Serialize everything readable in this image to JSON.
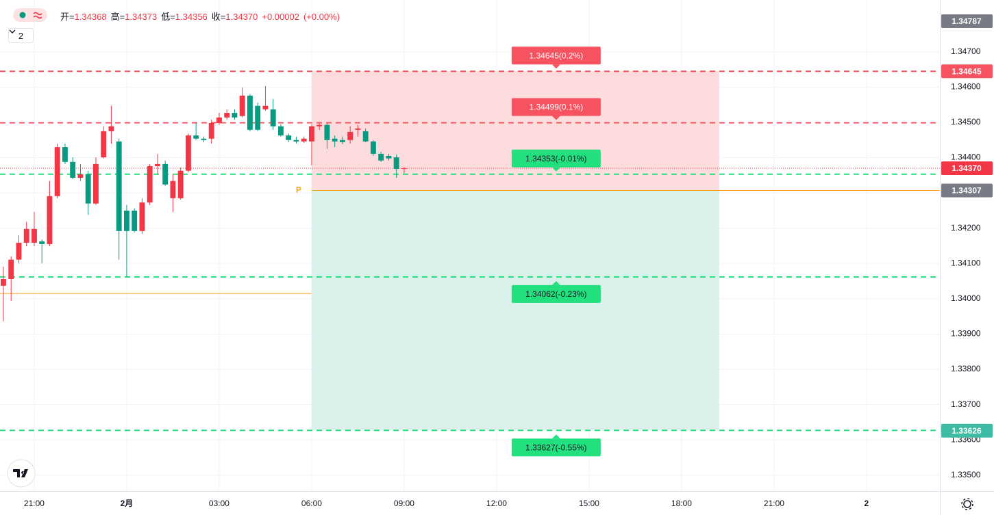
{
  "chart_data": {
    "type": "candlestick",
    "indicator_count": 2,
    "header": [
      {
        "name": "开=",
        "value": 1.34368
      },
      {
        "name": "高=",
        "value": 1.34373
      },
      {
        "name": "低=",
        "value": 1.34356
      },
      {
        "name": "收=",
        "value": {
          "value": 1.3437,
          "label": "1.34370"
        }
      }
    ],
    "change": "+0.00002",
    "change_pct": "(+0.00%)",
    "up_color": "#f23645",
    "down_color": "#089981",
    "grid": true,
    "xlim": [
      19.89,
      50.38
    ],
    "xticks": [
      {
        "value": 21,
        "label": "21:00"
      },
      {
        "value": 24,
        "label": "2月"
      },
      {
        "value": 27,
        "label": "03:00"
      },
      {
        "value": 30,
        "label": "06:00"
      },
      {
        "value": 33,
        "label": "09:00"
      },
      {
        "value": 36,
        "label": "12:00"
      },
      {
        "value": 39,
        "label": "15:00"
      },
      {
        "value": 42,
        "label": "18:00"
      },
      {
        "value": 45,
        "label": "21:00"
      },
      {
        "value": 48,
        "label": "2"
      }
    ],
    "ylim": [
      1.33455,
      1.34847
    ],
    "yticks": [
      {
        "value": 1.335,
        "label": "1.33500"
      },
      {
        "value": 1.336,
        "label": "1.33600"
      },
      {
        "value": 1.337,
        "label": "1.33700"
      },
      {
        "value": 1.338,
        "label": "1.33800"
      },
      {
        "value": 1.339,
        "label": "1.33900"
      },
      {
        "value": 1.34,
        "label": "1.34000"
      },
      {
        "value": 1.341,
        "label": "1.34100"
      },
      {
        "value": 1.342,
        "label": "1.34200"
      },
      {
        "value": 1.343,
        "label": "1.34300"
      },
      {
        "value": 1.344,
        "label": "1.34400"
      },
      {
        "value": 1.345,
        "label": "1.34500"
      },
      {
        "value": 1.346,
        "label": "1.34600"
      },
      {
        "value": 1.347,
        "label": "1.34700"
      }
    ],
    "x": [
      20,
      20.25,
      20.5,
      20.75,
      21,
      21.25,
      21.5,
      21.75,
      22,
      22.25,
      22.5,
      22.75,
      23,
      23.25,
      23.5,
      23.75,
      24,
      24.25,
      24.5,
      24.75,
      25,
      25.25,
      25.5,
      25.75,
      26,
      26.25,
      26.5,
      26.75,
      27,
      27.25,
      27.5,
      27.75,
      28,
      28.25,
      28.5,
      28.75,
      29,
      29.25,
      29.5,
      29.75,
      30,
      30.25,
      30.5,
      30.75,
      31,
      31.25,
      31.5,
      31.75,
      32,
      32.25,
      32.5,
      32.75,
      33
    ],
    "open": [
      1.34037,
      1.34056,
      1.34111,
      1.34159,
      1.34159,
      1.34163,
      1.34155,
      1.34291,
      1.3443,
      1.34388,
      1.34343,
      1.34353,
      1.3427,
      1.34401,
      1.34475,
      1.34446,
      1.3425,
      1.3425,
      1.34192,
      1.34273,
      1.34376,
      1.34382,
      1.34285,
      1.34285,
      1.34363,
      1.34463,
      1.34454,
      1.34454,
      1.34498,
      1.34514,
      1.34527,
      1.34518,
      1.34576,
      1.34547,
      1.34537,
      1.34537,
      1.34489,
      1.34463,
      1.3445,
      1.34446,
      1.34446,
      1.34489,
      1.34493,
      1.34454,
      1.3445,
      1.3445,
      1.34479,
      1.34475,
      1.34446,
      1.34411,
      1.34405,
      1.34401,
      1.34368
    ],
    "high": [
      1.34091,
      1.3412,
      1.3418,
      1.34218,
      1.34246,
      1.34168,
      1.34334,
      1.3444,
      1.3444,
      1.34401,
      1.34382,
      1.34363,
      1.34401,
      1.34489,
      1.34547,
      1.34454,
      1.34266,
      1.34256,
      1.34285,
      1.34382,
      1.34411,
      1.34392,
      1.34353,
      1.34372,
      1.34469,
      1.34498,
      1.3446,
      1.34508,
      1.34527,
      1.34537,
      1.34537,
      1.34599,
      1.3458,
      1.34556,
      1.34603,
      1.34566,
      1.34495,
      1.34469,
      1.3446,
      1.3446,
      1.34495,
      1.34498,
      1.34498,
      1.34463,
      1.3446,
      1.34489,
      1.34493,
      1.34483,
      1.3445,
      1.34417,
      1.34411,
      1.34409,
      1.34373
    ],
    "low": [
      1.33936,
      1.33994,
      1.34101,
      1.34149,
      1.34149,
      1.34101,
      1.34149,
      1.34285,
      1.34382,
      1.34339,
      1.34334,
      1.34238,
      1.34266,
      1.34398,
      1.3444,
      1.34111,
      1.34062,
      1.34188,
      1.34184,
      1.34266,
      1.34353,
      1.3432,
      1.34246,
      1.34281,
      1.34359,
      1.3445,
      1.34444,
      1.3444,
      1.34493,
      1.34508,
      1.34508,
      1.34514,
      1.34475,
      1.34475,
      1.34533,
      1.34479,
      1.3446,
      1.34444,
      1.3444,
      1.34442,
      1.34378,
      1.34479,
      1.34425,
      1.3443,
      1.34438,
      1.3444,
      1.3446,
      1.34444,
      1.34405,
      1.34388,
      1.34392,
      1.34343,
      1.34356
    ],
    "close": [
      1.34056,
      1.34111,
      1.34159,
      1.34198,
      1.34198,
      1.34155,
      1.34291,
      1.3443,
      1.34388,
      1.34343,
      1.34353,
      1.3427,
      1.34382,
      1.34475,
      1.34489,
      1.34192,
      1.34192,
      1.34192,
      1.34273,
      1.34376,
      1.34382,
      1.34324,
      1.34334,
      1.34363,
      1.34463,
      1.34454,
      1.3445,
      1.34498,
      1.34514,
      1.34527,
      1.34514,
      1.34576,
      1.34479,
      1.34479,
      1.34547,
      1.34489,
      1.34463,
      1.3445,
      1.34446,
      1.34454,
      1.34489,
      1.34493,
      1.3445,
      1.34446,
      1.34444,
      1.34473,
      1.34483,
      1.34446,
      1.34411,
      1.34392,
      1.34398,
      1.34368,
      1.3437
    ],
    "last_price_color": "#f23645",
    "levels": [
      {
        "value": 1.34645,
        "label": "1.34645(0.2%)",
        "color": "#f7525f",
        "text_color": "#ffffff"
      },
      {
        "value": 1.34499,
        "label": "1.34499(0.1%)",
        "color": "#f7525f",
        "text_color": "#ffffff"
      },
      {
        "value": 1.34353,
        "label": "1.34353(-0.01%)",
        "color": "#22e07e",
        "text_color": "#131722"
      },
      {
        "value": 1.34062,
        "label": "1.34062(-0.23%)",
        "color": "#22e07e",
        "text_color": "#131722"
      },
      {
        "value": 1.33627,
        "label": "1.33627(-0.55%)",
        "color": "#22e07e",
        "text_color": "#131722"
      }
    ],
    "position": {
      "x": [
        30,
        43.22
      ],
      "entry": 1.34307,
      "top": 1.34645,
      "bottom": 1.33627,
      "marker": "P",
      "line_color": "#f7a21b",
      "upper_color": "#fddcde",
      "lower_color": "#daf1eb",
      "prior_level": 1.34015
    },
    "price_tags": [
      {
        "value": 1.34787,
        "color": "#787b86"
      },
      {
        "value": 1.34645,
        "color": "#f7525f"
      },
      {
        "value": {
          "value": 1.3437,
          "label": "1.34370"
        },
        "color": "#f23645"
      },
      {
        "value": 1.34307,
        "color": "#787b86"
      },
      {
        "value": 1.33626,
        "color": "#3dbca3"
      }
    ]
  }
}
